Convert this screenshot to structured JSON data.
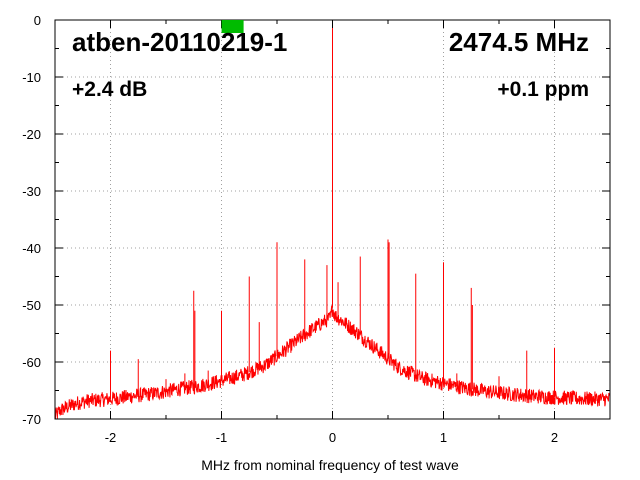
{
  "chart_data": {
    "type": "line",
    "title": "atben-20110219-1",
    "frequency_label": "2474.5 MHz",
    "gain_label": "+2.4 dB",
    "ppm_label": "+0.1 ppm",
    "xlabel": "MHz from nominal frequency of test wave",
    "ylabel": "",
    "xlim": [
      -2.5,
      2.5
    ],
    "ylim": [
      -70,
      0
    ],
    "x_ticks": [
      -2,
      -1,
      0,
      1,
      2
    ],
    "x_tick_labels": [
      "-2",
      "-1",
      "0",
      "1",
      "2"
    ],
    "y_ticks": [
      0,
      -10,
      -20,
      -30,
      -40,
      -50,
      -60,
      -70
    ],
    "y_tick_labels": [
      "0",
      "-10",
      "-20",
      "-30",
      "-40",
      "-50",
      "-60",
      "-70"
    ],
    "grid": true,
    "marker": {
      "x": -0.9,
      "color": "#00bb00"
    },
    "series": [
      {
        "color": "#ff0000",
        "noise_floor": [
          [
            -2.5,
            -69.5
          ],
          [
            -2.45,
            -68.5
          ],
          [
            -2.4,
            -68
          ],
          [
            -2.3,
            -67.2
          ],
          [
            -2.2,
            -66.8
          ],
          [
            -2.0,
            -66.5
          ],
          [
            -1.8,
            -66.0
          ],
          [
            -1.6,
            -65.5
          ],
          [
            -1.4,
            -64.8
          ],
          [
            -1.2,
            -64.2
          ],
          [
            -1.0,
            -63.3
          ],
          [
            -0.8,
            -62.2
          ],
          [
            -0.6,
            -60.5
          ],
          [
            -0.4,
            -57.5
          ],
          [
            -0.2,
            -54.5
          ],
          [
            -0.1,
            -53.2
          ],
          [
            -0.02,
            -52.3
          ],
          [
            0,
            -50.5
          ],
          [
            0.02,
            -51.8
          ],
          [
            0.1,
            -53.0
          ],
          [
            0.2,
            -54.5
          ],
          [
            0.4,
            -57.8
          ],
          [
            0.6,
            -61.0
          ],
          [
            0.8,
            -62.8
          ],
          [
            1.0,
            -63.8
          ],
          [
            1.2,
            -64.6
          ],
          [
            1.4,
            -65.2
          ],
          [
            1.6,
            -65.6
          ],
          [
            1.8,
            -66.0
          ],
          [
            2.0,
            -66.2
          ],
          [
            2.2,
            -66.4
          ],
          [
            2.4,
            -66.5
          ],
          [
            2.5,
            -66.5
          ]
        ],
        "spurs": [
          [
            -2.0,
            -58
          ],
          [
            -1.75,
            -59.5
          ],
          [
            -1.5,
            -63
          ],
          [
            -1.33,
            -62
          ],
          [
            -1.25,
            -47.5
          ],
          [
            -1.24,
            -51
          ],
          [
            -1.12,
            -61.5
          ],
          [
            -1.0,
            -51
          ],
          [
            -0.75,
            -45
          ],
          [
            -0.66,
            -53
          ],
          [
            -0.5,
            -39
          ],
          [
            -0.25,
            -42
          ],
          [
            -0.05,
            -43
          ],
          [
            0,
            0
          ],
          [
            0.05,
            -46
          ],
          [
            0.25,
            -41.5
          ],
          [
            0.5,
            -38.5
          ],
          [
            0.51,
            -39
          ],
          [
            0.75,
            -44.5
          ],
          [
            1.0,
            -42.5
          ],
          [
            1.12,
            -62
          ],
          [
            1.25,
            -47
          ],
          [
            1.26,
            -50
          ],
          [
            1.5,
            -62.5
          ],
          [
            1.75,
            -58
          ],
          [
            2.0,
            -57.5
          ]
        ]
      }
    ]
  }
}
